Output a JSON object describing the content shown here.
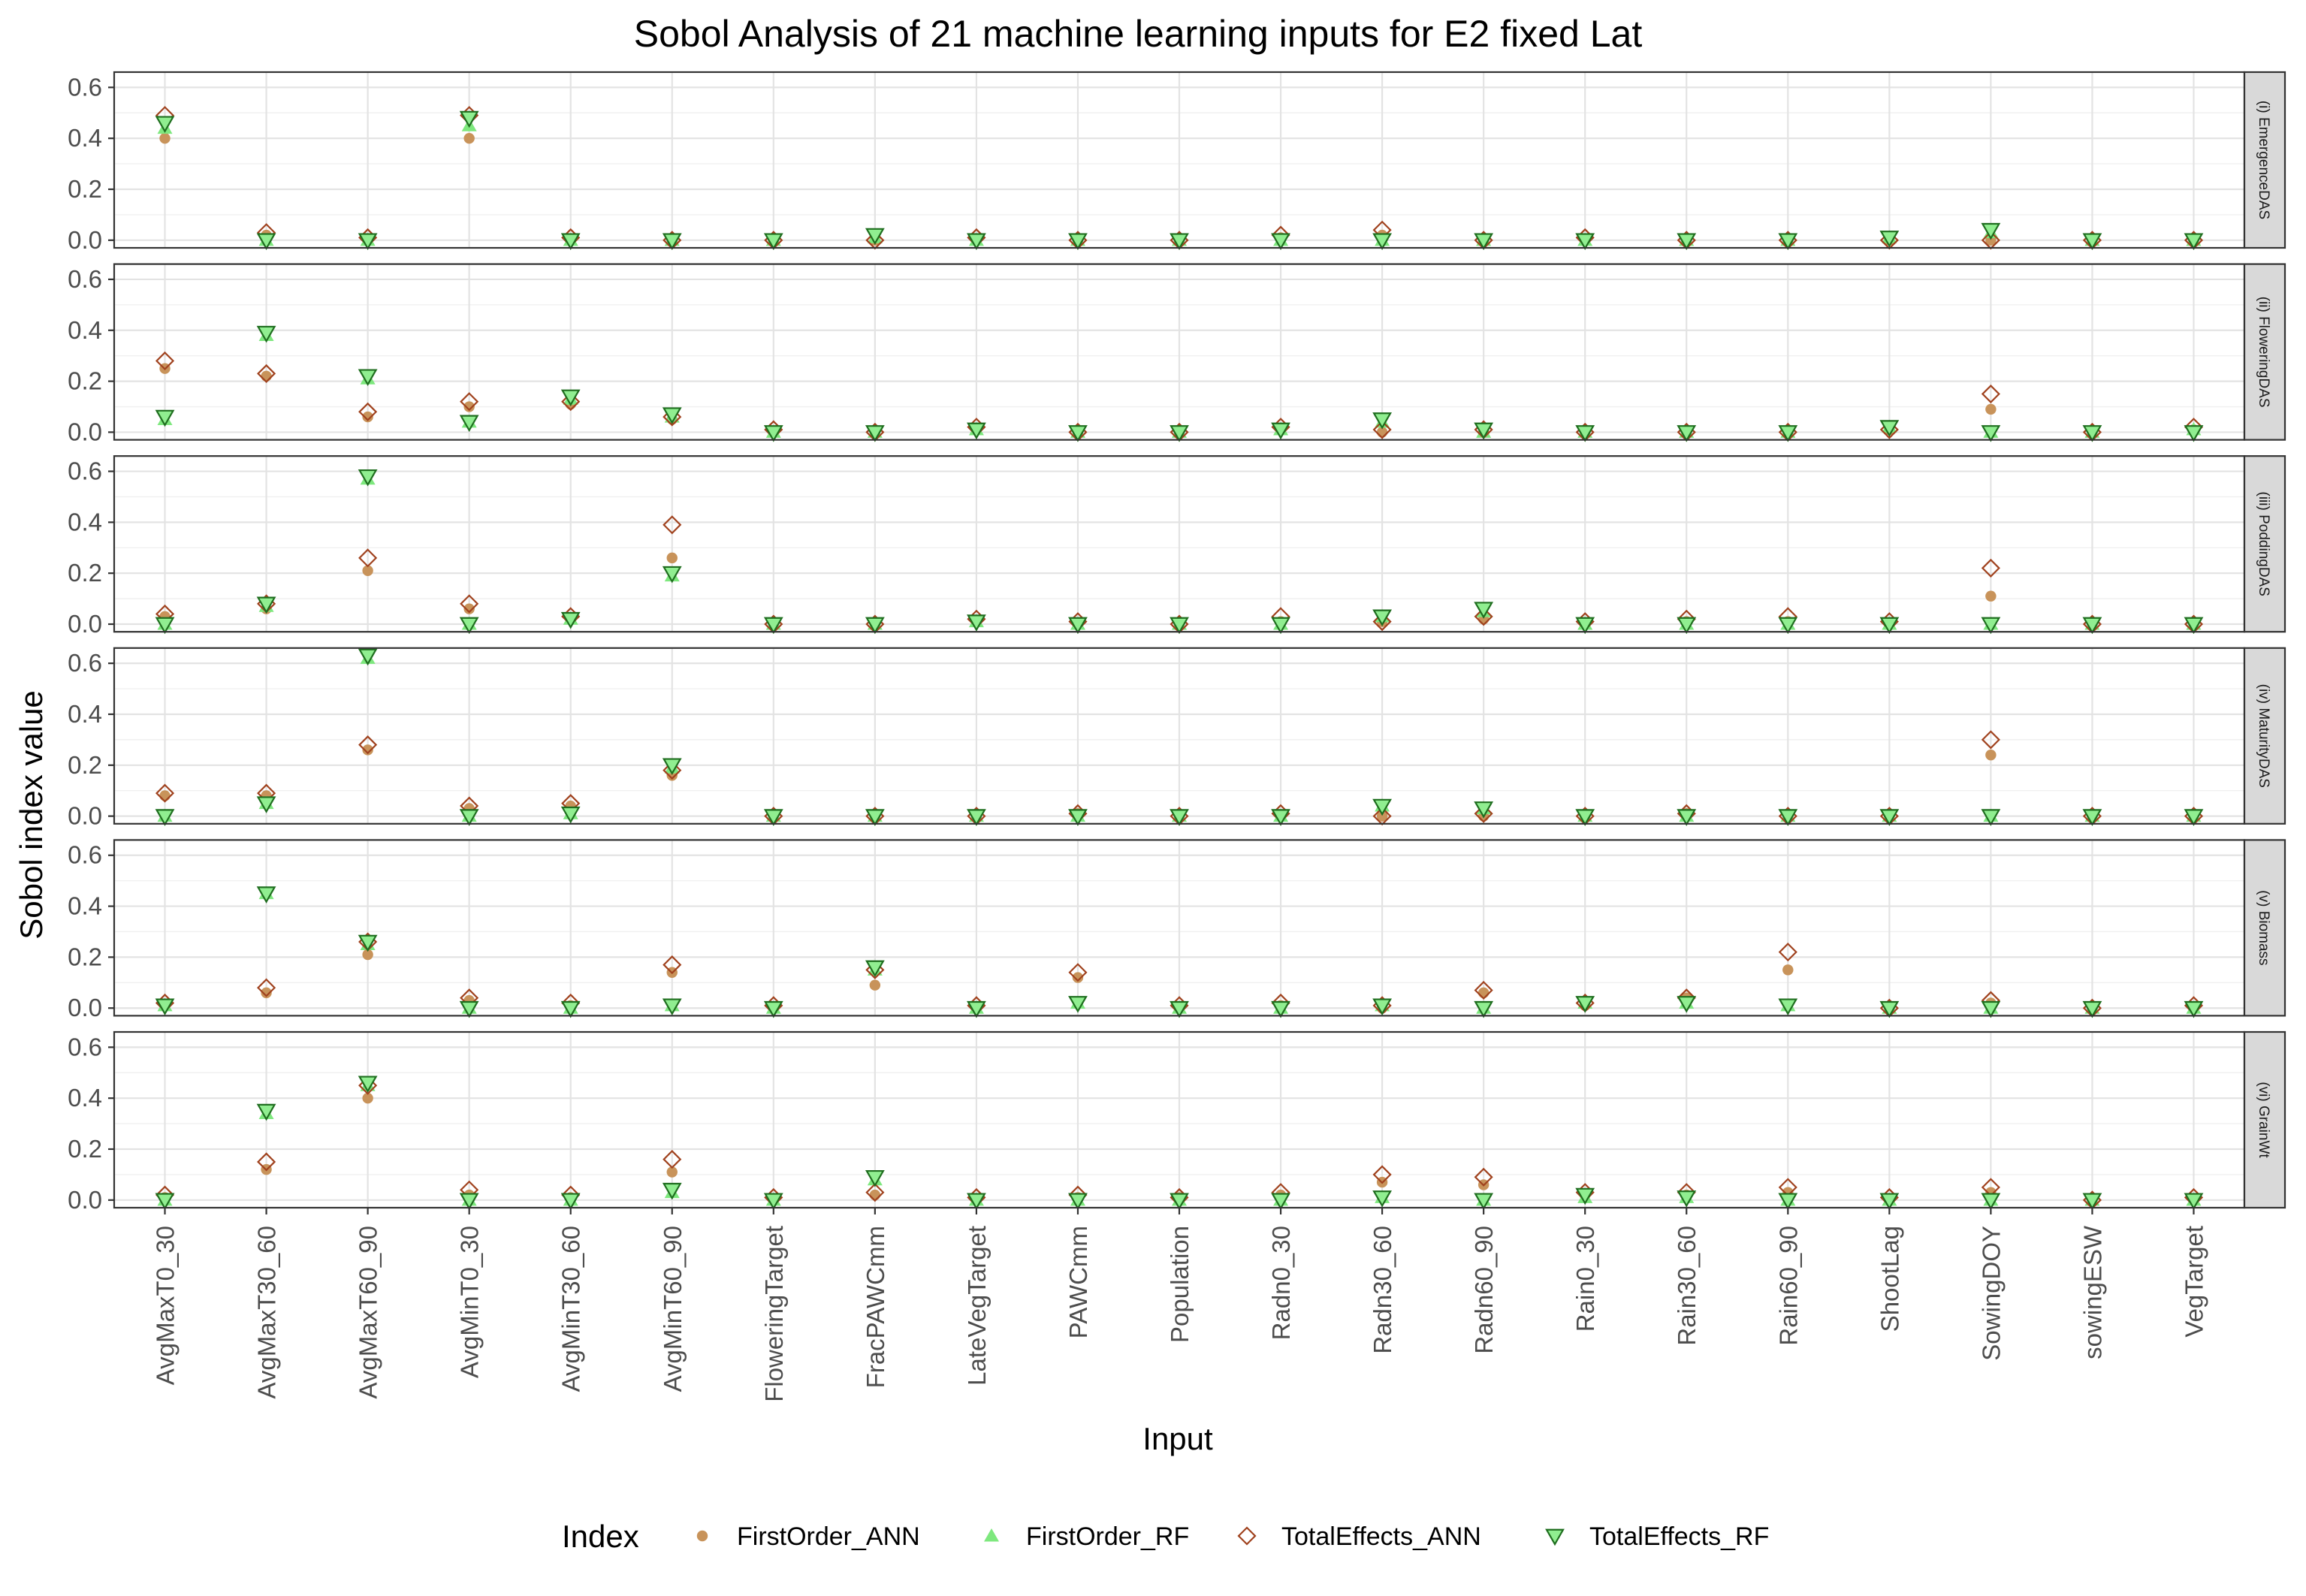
{
  "chart_data": {
    "type": "scatter",
    "title": "Sobol Analysis of 21 machine learning inputs for E2 fixed Lat",
    "xlabel": "Input",
    "ylabel": "Sobol index value",
    "ylim": [
      -0.03,
      0.66
    ],
    "yticks": [
      "0.0",
      "0.2",
      "0.4",
      "0.6"
    ],
    "grid": true,
    "legend_position": "bottom",
    "legend_title": "Index",
    "categories": [
      "AvgMaxT0_30",
      "AvgMaxT30_60",
      "AvgMaxT60_90",
      "AvgMinT0_30",
      "AvgMinT30_60",
      "AvgMinT60_90",
      "FloweringTarget",
      "FracPAWCmm",
      "LateVegTarget",
      "PAWCmm",
      "Population",
      "Radn0_30",
      "Radn30_60",
      "Radn60_90",
      "Rain0_30",
      "Rain30_60",
      "Rain60_90",
      "ShootLag",
      "SowingDOY",
      "sowingESW",
      "VegTarget"
    ],
    "series": [
      {
        "name": "FirstOrder_ANN",
        "color": "#c8935a",
        "marker": "filled-circle"
      },
      {
        "name": "FirstOrder_RF",
        "color": "#7ee87e",
        "marker": "filled-triangle-up"
      },
      {
        "name": "TotalEffects_ANN",
        "color": "#a0421e",
        "marker": "open-diamond"
      },
      {
        "name": "TotalEffects_RF",
        "color": "#1f6e1f",
        "fill": "#90ee90",
        "marker": "triangle-down"
      }
    ],
    "panels": [
      {
        "label": "(i) EmergenceDAS",
        "values": {
          "FirstOrder_ANN": [
            0.4,
            0.02,
            0.0,
            0.4,
            0.0,
            0.0,
            0.0,
            0.0,
            0.0,
            0.0,
            0.0,
            0.01,
            0.02,
            0.0,
            0.0,
            0.0,
            0.0,
            0.0,
            0.0,
            0.0,
            0.0
          ],
          "FirstOrder_RF": [
            0.44,
            0.0,
            0.0,
            0.45,
            0.0,
            0.0,
            0.0,
            0.01,
            0.0,
            0.0,
            0.0,
            0.0,
            0.0,
            0.0,
            0.0,
            0.0,
            0.0,
            0.01,
            0.03,
            0.0,
            0.0
          ],
          "TotalEffects_ANN": [
            0.49,
            0.03,
            0.01,
            0.49,
            0.01,
            0.0,
            0.0,
            0.0,
            0.01,
            0.0,
            0.0,
            0.02,
            0.04,
            0.0,
            0.01,
            0.0,
            0.0,
            0.0,
            0.0,
            0.0,
            0.0
          ],
          "TotalEffects_RF": [
            0.46,
            0.0,
            0.0,
            0.48,
            0.0,
            0.0,
            0.0,
            0.02,
            0.0,
            0.0,
            0.0,
            0.0,
            0.0,
            0.0,
            0.0,
            0.0,
            0.0,
            0.01,
            0.04,
            0.0,
            0.0
          ]
        }
      },
      {
        "label": "(ii) FloweringDAS",
        "values": {
          "FirstOrder_ANN": [
            0.25,
            0.22,
            0.06,
            0.1,
            0.11,
            0.05,
            0.0,
            0.0,
            0.01,
            0.0,
            0.0,
            0.01,
            0.0,
            0.0,
            0.0,
            0.0,
            0.0,
            0.01,
            0.09,
            0.0,
            0.01
          ],
          "FirstOrder_RF": [
            0.05,
            0.38,
            0.21,
            0.04,
            0.13,
            0.06,
            0.0,
            0.0,
            0.01,
            0.0,
            0.0,
            0.01,
            0.04,
            0.0,
            0.0,
            0.0,
            0.0,
            0.02,
            0.0,
            0.0,
            0.01
          ],
          "TotalEffects_ANN": [
            0.28,
            0.23,
            0.08,
            0.12,
            0.12,
            0.06,
            0.01,
            0.0,
            0.02,
            0.0,
            0.0,
            0.02,
            0.01,
            0.01,
            0.0,
            0.0,
            0.0,
            0.01,
            0.15,
            0.0,
            0.02
          ],
          "TotalEffects_RF": [
            0.06,
            0.39,
            0.22,
            0.04,
            0.14,
            0.07,
            0.0,
            0.0,
            0.01,
            0.0,
            0.0,
            0.01,
            0.05,
            0.01,
            0.0,
            0.0,
            0.0,
            0.02,
            0.0,
            0.0,
            0.0
          ]
        }
      },
      {
        "label": "(iii) PoddingDAS",
        "values": {
          "FirstOrder_ANN": [
            0.03,
            0.06,
            0.21,
            0.06,
            0.02,
            0.26,
            0.0,
            0.0,
            0.01,
            0.0,
            0.0,
            0.01,
            0.01,
            0.02,
            0.0,
            0.01,
            0.01,
            0.0,
            0.11,
            0.0,
            0.0
          ],
          "FirstOrder_RF": [
            0.0,
            0.07,
            0.57,
            0.0,
            0.02,
            0.19,
            0.0,
            0.0,
            0.01,
            0.0,
            0.0,
            0.0,
            0.03,
            0.05,
            0.0,
            0.0,
            0.0,
            0.0,
            0.0,
            0.0,
            0.0
          ],
          "TotalEffects_ANN": [
            0.04,
            0.08,
            0.26,
            0.08,
            0.03,
            0.39,
            0.0,
            0.0,
            0.02,
            0.01,
            0.0,
            0.03,
            0.01,
            0.03,
            0.01,
            0.02,
            0.03,
            0.01,
            0.22,
            0.0,
            0.0
          ],
          "TotalEffects_RF": [
            0.0,
            0.08,
            0.58,
            0.0,
            0.02,
            0.2,
            0.0,
            0.0,
            0.01,
            0.0,
            0.0,
            0.0,
            0.03,
            0.06,
            0.0,
            0.0,
            0.0,
            0.0,
            0.0,
            0.0,
            0.0
          ]
        }
      },
      {
        "label": "(iv) MaturityDAS",
        "values": {
          "FirstOrder_ANN": [
            0.08,
            0.08,
            0.26,
            0.03,
            0.04,
            0.16,
            0.0,
            0.0,
            0.0,
            0.01,
            0.0,
            0.0,
            0.0,
            0.0,
            0.0,
            0.01,
            0.0,
            0.0,
            0.24,
            0.0,
            0.0
          ],
          "FirstOrder_RF": [
            0.0,
            0.05,
            0.62,
            0.0,
            0.01,
            0.19,
            0.0,
            0.0,
            0.0,
            0.0,
            0.0,
            0.0,
            0.04,
            0.03,
            0.0,
            0.0,
            0.0,
            0.0,
            0.0,
            0.0,
            0.0
          ],
          "TotalEffects_ANN": [
            0.09,
            0.09,
            0.28,
            0.04,
            0.05,
            0.18,
            0.0,
            0.0,
            0.0,
            0.01,
            0.0,
            0.01,
            0.0,
            0.01,
            0.0,
            0.01,
            0.0,
            0.0,
            0.3,
            0.0,
            0.0
          ],
          "TotalEffects_RF": [
            0.0,
            0.05,
            0.63,
            0.0,
            0.01,
            0.2,
            0.0,
            0.0,
            0.0,
            0.0,
            0.0,
            0.0,
            0.04,
            0.03,
            0.0,
            0.0,
            0.0,
            0.0,
            0.0,
            0.0,
            0.0
          ]
        }
      },
      {
        "label": "(v) Biomass",
        "values": {
          "FirstOrder_ANN": [
            0.01,
            0.06,
            0.21,
            0.03,
            0.01,
            0.14,
            0.0,
            0.09,
            0.0,
            0.12,
            0.0,
            0.01,
            0.0,
            0.06,
            0.01,
            0.04,
            0.15,
            0.0,
            0.02,
            0.0,
            0.0
          ],
          "FirstOrder_RF": [
            0.01,
            0.45,
            0.25,
            0.0,
            0.0,
            0.01,
            0.0,
            0.15,
            0.0,
            0.02,
            0.0,
            0.0,
            0.01,
            0.0,
            0.02,
            0.02,
            0.01,
            0.0,
            0.0,
            0.0,
            0.0
          ],
          "TotalEffects_ANN": [
            0.02,
            0.08,
            0.26,
            0.04,
            0.02,
            0.17,
            0.01,
            0.15,
            0.01,
            0.14,
            0.01,
            0.02,
            0.01,
            0.07,
            0.02,
            0.04,
            0.22,
            0.0,
            0.03,
            0.0,
            0.01
          ],
          "TotalEffects_RF": [
            0.01,
            0.45,
            0.26,
            0.0,
            0.0,
            0.01,
            0.0,
            0.16,
            0.0,
            0.02,
            0.0,
            0.0,
            0.01,
            0.0,
            0.02,
            0.02,
            0.01,
            0.0,
            0.0,
            0.0,
            0.0
          ]
        }
      },
      {
        "label": "(vi) GrainWt",
        "values": {
          "FirstOrder_ANN": [
            0.01,
            0.12,
            0.4,
            0.02,
            0.01,
            0.11,
            0.0,
            0.02,
            0.0,
            0.01,
            0.01,
            0.02,
            0.07,
            0.06,
            0.02,
            0.02,
            0.03,
            0.0,
            0.03,
            0.0,
            0.0
          ],
          "FirstOrder_RF": [
            0.0,
            0.34,
            0.45,
            0.0,
            0.0,
            0.03,
            0.0,
            0.08,
            0.0,
            0.0,
            0.0,
            0.0,
            0.01,
            0.0,
            0.01,
            0.01,
            0.0,
            0.0,
            0.0,
            0.0,
            0.0
          ],
          "TotalEffects_ANN": [
            0.02,
            0.15,
            0.45,
            0.04,
            0.02,
            0.16,
            0.01,
            0.03,
            0.01,
            0.02,
            0.01,
            0.03,
            0.1,
            0.09,
            0.03,
            0.03,
            0.05,
            0.01,
            0.05,
            0.0,
            0.01
          ],
          "TotalEffects_RF": [
            0.0,
            0.35,
            0.46,
            0.0,
            0.0,
            0.04,
            0.0,
            0.09,
            0.0,
            0.0,
            0.0,
            0.0,
            0.01,
            0.0,
            0.02,
            0.01,
            0.0,
            0.0,
            0.0,
            0.0,
            0.0
          ]
        }
      }
    ]
  }
}
